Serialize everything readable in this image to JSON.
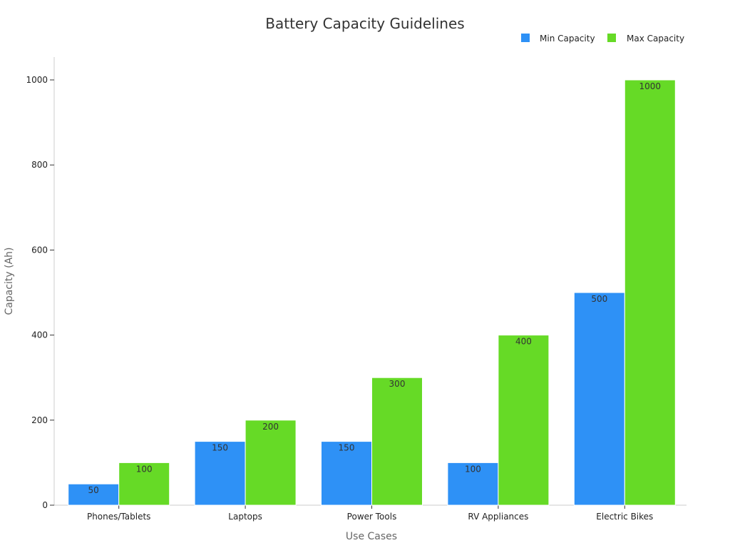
{
  "chart_data": {
    "type": "bar",
    "title": "Battery Capacity Guidelines",
    "xlabel": "Use Cases",
    "ylabel": "Capacity (Ah)",
    "categories": [
      "Phones/Tablets",
      "Laptops",
      "Power Tools",
      "RV Appliances",
      "Electric Bikes"
    ],
    "series": [
      {
        "name": "Min Capacity",
        "color": "#2e91f6",
        "values": [
          50,
          150,
          150,
          100,
          500
        ]
      },
      {
        "name": "Max Capacity",
        "color": "#66da26",
        "values": [
          100,
          200,
          300,
          400,
          1000
        ]
      }
    ],
    "ylim": [
      0,
      1050
    ],
    "yticks": [
      0,
      200,
      400,
      600,
      800,
      1000
    ],
    "grid": false,
    "legend": "top-right",
    "data_labels": true
  }
}
